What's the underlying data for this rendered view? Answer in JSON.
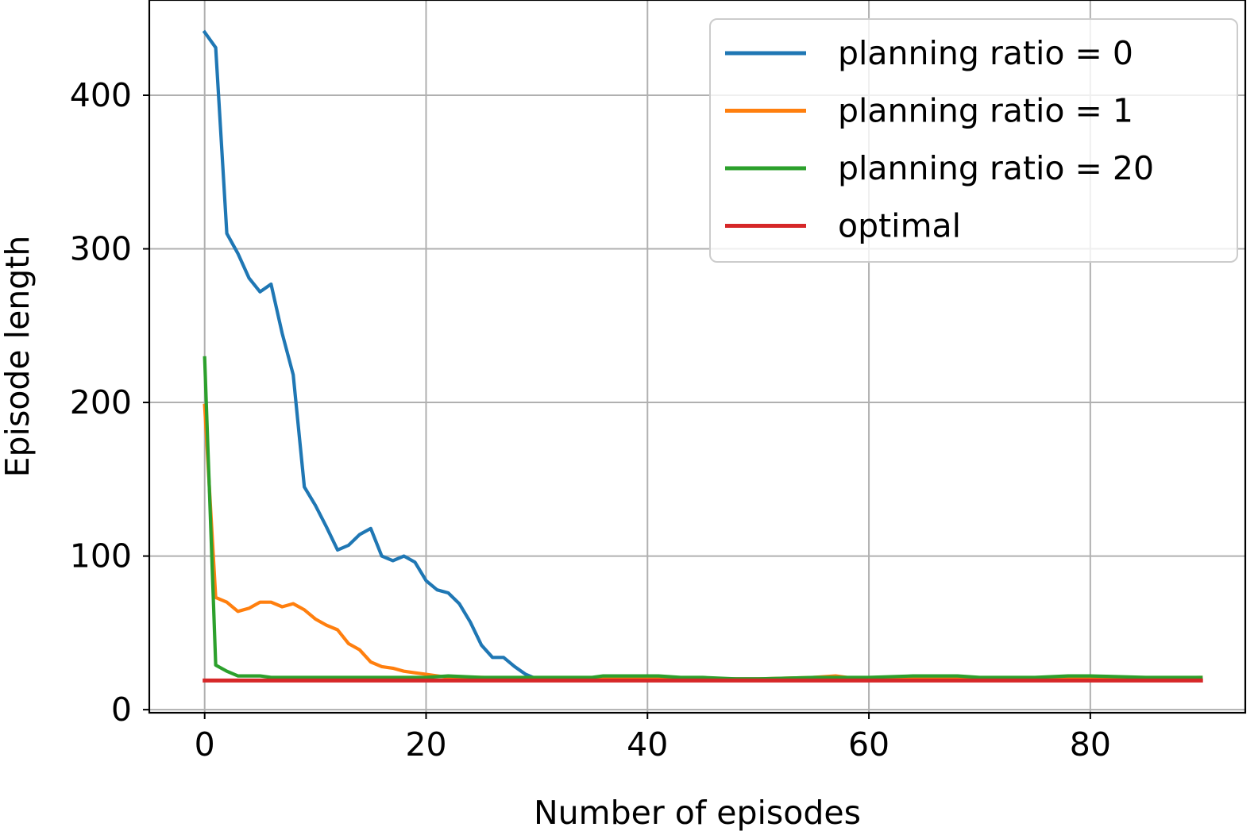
{
  "chart_data": {
    "type": "line",
    "xlabel": "Number of episodes",
    "ylabel": "Episode length",
    "xlim": [
      -5,
      94
    ],
    "ylim": [
      -2,
      462
    ],
    "xticks": [
      0,
      20,
      40,
      60,
      80
    ],
    "yticks": [
      0,
      100,
      200,
      300,
      400
    ],
    "grid": true,
    "legend_position": "top-right",
    "series": [
      {
        "name": "planning ratio = 0",
        "color": "#1f77b4",
        "x": [
          0,
          1,
          2,
          3,
          4,
          5,
          6,
          7,
          8,
          9,
          10,
          11,
          12,
          13,
          14,
          15,
          16,
          17,
          18,
          19,
          20,
          21,
          22,
          23,
          24,
          25,
          26,
          27,
          28,
          29,
          30,
          40,
          50,
          60,
          70,
          80,
          90
        ],
        "values": [
          441,
          431,
          310,
          297,
          281,
          272,
          277,
          245,
          218,
          145,
          133,
          119,
          104,
          107,
          114,
          118,
          100,
          97,
          100,
          96,
          84,
          78,
          76,
          69,
          57,
          42,
          34,
          34,
          28,
          23,
          20,
          20,
          20,
          20,
          20,
          20,
          20
        ]
      },
      {
        "name": "planning ratio = 1",
        "color": "#ff7f0e",
        "x": [
          0,
          1,
          2,
          3,
          4,
          5,
          6,
          7,
          8,
          9,
          10,
          11,
          12,
          13,
          14,
          15,
          16,
          17,
          18,
          19,
          20,
          21,
          22,
          23,
          24,
          25,
          30,
          40,
          50,
          55,
          57,
          58,
          60,
          70,
          80,
          90
        ],
        "values": [
          198,
          73,
          70,
          64,
          66,
          70,
          70,
          67,
          69,
          65,
          59,
          55,
          52,
          43,
          39,
          31,
          28,
          27,
          25,
          24,
          23,
          22,
          21,
          21,
          21,
          21,
          20,
          20,
          20,
          21,
          22,
          21,
          20,
          20,
          20,
          21
        ]
      },
      {
        "name": "planning ratio = 20",
        "color": "#2ca02c",
        "x": [
          0,
          1,
          2,
          3,
          4,
          5,
          6,
          7,
          8,
          10,
          15,
          20,
          22,
          25,
          30,
          35,
          36,
          38,
          39,
          41,
          43,
          45,
          48,
          50,
          55,
          60,
          64,
          66,
          68,
          70,
          75,
          78,
          80,
          85,
          90
        ],
        "values": [
          229,
          29,
          25,
          22,
          22,
          22,
          21,
          21,
          21,
          21,
          21,
          21,
          22,
          21,
          21,
          21,
          22,
          22,
          22,
          22,
          21,
          21,
          20,
          20,
          21,
          21,
          22,
          22,
          22,
          21,
          21,
          22,
          22,
          21,
          21
        ]
      },
      {
        "name": "optimal",
        "color": "#d62728",
        "x": [
          0,
          90
        ],
        "values": [
          19,
          19
        ]
      }
    ]
  }
}
